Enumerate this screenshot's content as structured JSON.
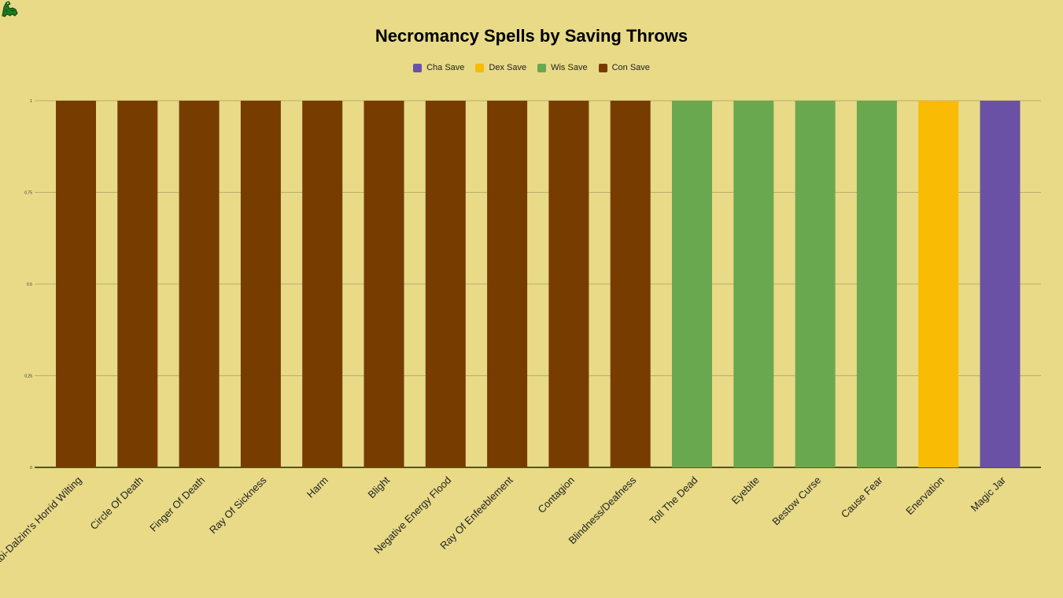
{
  "colors": {
    "background": "#e8da87",
    "cha": "#6a51a5",
    "dex": "#f9bb04",
    "wis": "#6aa84f",
    "con": "#773c00",
    "grid": "#a8a065"
  },
  "logo_icon": "green-dragon-icon",
  "chart_data": {
    "type": "bar",
    "title": "Necromancy Spells by Saving Throws",
    "legend_position": "top",
    "grid": true,
    "ylim": [
      0,
      1
    ],
    "yticks": [
      "0",
      "0.25",
      "0.5",
      "0.75",
      "1"
    ],
    "legend": [
      {
        "name": "Cha Save",
        "color": "#6a51a5"
      },
      {
        "name": "Dex Save",
        "color": "#f9bb04"
      },
      {
        "name": "Wis Save",
        "color": "#6aa84f"
      },
      {
        "name": "Con Save",
        "color": "#773c00"
      }
    ],
    "bars": [
      {
        "category": "Abi-Dalzim's Horrid Wilting",
        "series": "Con Save",
        "value": 1
      },
      {
        "category": "Circle Of Death",
        "series": "Con Save",
        "value": 1
      },
      {
        "category": "Finger Of Death",
        "series": "Con Save",
        "value": 1
      },
      {
        "category": "Ray Of Sickness",
        "series": "Con Save",
        "value": 1
      },
      {
        "category": "Harm",
        "series": "Con Save",
        "value": 1
      },
      {
        "category": "Blight",
        "series": "Con Save",
        "value": 1
      },
      {
        "category": "Negative Energy Flood",
        "series": "Con Save",
        "value": 1
      },
      {
        "category": "Ray Of Enfeeblement",
        "series": "Con Save",
        "value": 1
      },
      {
        "category": "Contagion",
        "series": "Con Save",
        "value": 1
      },
      {
        "category": "Blindness/Deafness",
        "series": "Con Save",
        "value": 1
      },
      {
        "category": "Toll The Dead",
        "series": "Wis Save",
        "value": 1
      },
      {
        "category": "Eyebite",
        "series": "Wis Save",
        "value": 1
      },
      {
        "category": "Bestow Curse",
        "series": "Wis Save",
        "value": 1
      },
      {
        "category": "Cause Fear",
        "series": "Wis Save",
        "value": 1
      },
      {
        "category": "Enervation",
        "series": "Dex Save",
        "value": 1
      },
      {
        "category": "Magic Jar",
        "series": "Cha Save",
        "value": 1
      }
    ]
  }
}
